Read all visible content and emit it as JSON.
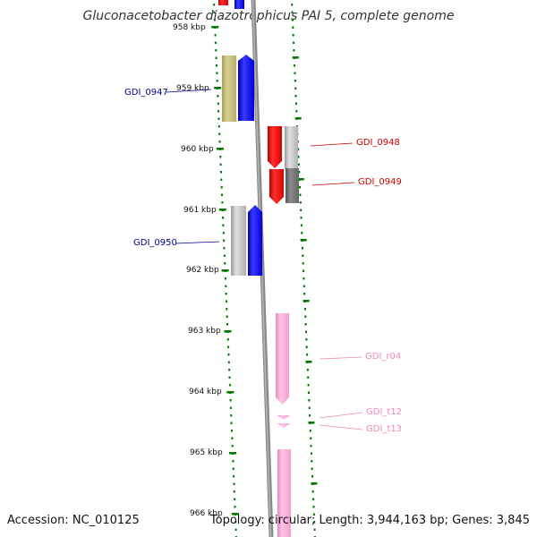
{
  "title": "Gluconacetobacter diazotrophicus PAI 5, complete genome",
  "footer": {
    "accession": "Accession: NC_010125",
    "summary": "Topology: circular; Length: 3,944,163 bp; Genes: 3,845"
  },
  "ticks": [
    "958 kbp",
    "959 kbp",
    "960 kbp",
    "961 kbp",
    "962 kbp",
    "963 kbp",
    "964 kbp",
    "965 kbp",
    "966 kbp"
  ],
  "genes": [
    {
      "name": "GDI_0947",
      "color": "#00008b"
    },
    {
      "name": "GDI_0948",
      "color": "#cc0000"
    },
    {
      "name": "GDI_0949",
      "color": "#cc0000"
    },
    {
      "name": "GDI_0950",
      "color": "#00008b"
    },
    {
      "name": "GDI_r04",
      "color": "#ee88bb"
    },
    {
      "name": "GDI_t12",
      "color": "#ee88bb"
    },
    {
      "name": "GDI_t13",
      "color": "#ee88bb"
    }
  ],
  "colors": {
    "tick": "#007700",
    "backbone": "#888888",
    "blue": "#0000ff",
    "olive": "#c8be78",
    "red": "#ee0000",
    "grey": "#c0c0c0",
    "darkgrey": "#707070",
    "pink": "#ffaadd"
  }
}
